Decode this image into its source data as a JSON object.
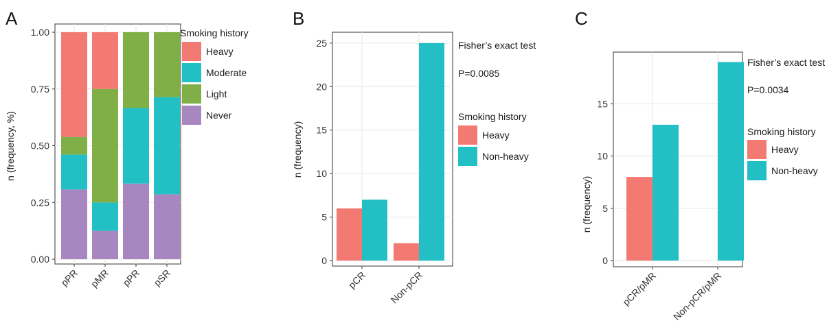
{
  "chart_data": [
    {
      "panel": "A",
      "type": "bar",
      "stacked": true,
      "categories": [
        "pPR",
        "pMR",
        "pPR",
        "pSR"
      ],
      "series": [
        {
          "name": "Never",
          "color": "#A886BF",
          "values": [
            0.307,
            0.125,
            0.333,
            0.286
          ]
        },
        {
          "name": "Moderate",
          "color": "#22BFC4",
          "values": [
            0.154,
            0.125,
            0.333,
            0.428
          ]
        },
        {
          "name": "Light",
          "color": "#7FAF46",
          "values": [
            0.077,
            0.5,
            0.334,
            0.286
          ]
        },
        {
          "name": "Heavy",
          "color": "#F37A72",
          "values": [
            0.462,
            0.25,
            0.0,
            0.0
          ]
        }
      ],
      "legend_title": "Smoking history",
      "legend_order": [
        "Heavy",
        "Moderate",
        "Light",
        "Never"
      ],
      "ylabel": "n (frequency, %)",
      "yticks": [
        "0.00",
        "0.25",
        "0.50",
        "0.75",
        "1.00"
      ],
      "ylim": [
        0,
        1
      ],
      "grid": true
    },
    {
      "panel": "B",
      "type": "bar",
      "grouped": true,
      "categories": [
        "pCR",
        "Non-pCR"
      ],
      "series": [
        {
          "name": "Heavy",
          "color": "#F37A72",
          "values": [
            6,
            2
          ]
        },
        {
          "name": "Non-heavy",
          "color": "#22BFC4",
          "values": [
            7,
            25
          ]
        }
      ],
      "legend_title": "Smoking history",
      "annotations": [
        "Fisher’s exact test",
        "P=0.0085"
      ],
      "ylabel": "n (frequency)",
      "yticks": [
        "0",
        "5",
        "10",
        "15",
        "20",
        "25"
      ],
      "ylim": [
        0,
        26.25
      ],
      "grid": true
    },
    {
      "panel": "C",
      "type": "bar",
      "grouped": true,
      "categories": [
        "pCR/pMR",
        "Non-pCR/pMR"
      ],
      "series": [
        {
          "name": "Heavy",
          "color": "#F37A72",
          "values": [
            8,
            0
          ]
        },
        {
          "name": "Non-heavy",
          "color": "#22BFC4",
          "values": [
            13,
            19
          ]
        }
      ],
      "legend_title": "Smoking history",
      "annotations": [
        "Fisher’s exact test",
        "P=0.0034"
      ],
      "ylabel": "n (frequency)",
      "yticks": [
        "0",
        "5",
        "10",
        "15"
      ],
      "ylim": [
        0,
        19.95
      ],
      "grid": true
    }
  ]
}
